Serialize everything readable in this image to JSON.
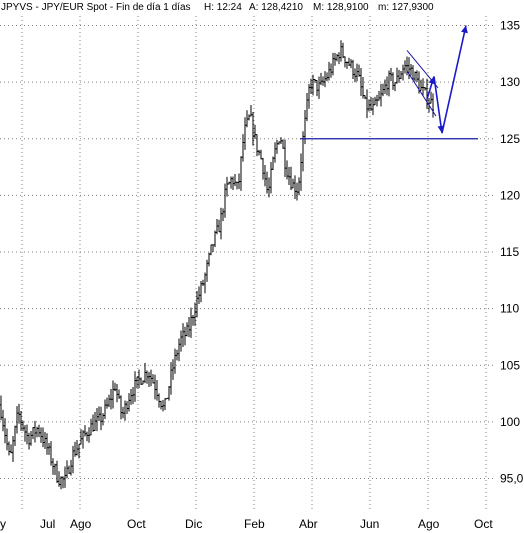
{
  "chart_data": {
    "type": "ohlc",
    "title": "JPYVS - JPY/EUR Spot - Fin de día 1 días",
    "header": {
      "title": "JPYVS - JPY/EUR Spot - Fin de día 1 días",
      "high": "H: 12:24",
      "ask": "A: 128,4210",
      "max": "M: 128,9100",
      "min": "m: 127,9300"
    },
    "x_tick_labels": [
      "y",
      "Jul",
      "Ago",
      "Oct",
      "Dic",
      "Feb",
      "Abr",
      "Jun",
      "Ago",
      "Oct"
    ],
    "y_tick_labels": [
      "95,0",
      "100",
      "105",
      "110",
      "115",
      "120",
      "125",
      "130",
      "135"
    ],
    "y_ticks": [
      95,
      100,
      105,
      110,
      115,
      120,
      125,
      130,
      135
    ],
    "ylim": [
      92.5,
      136.5
    ],
    "grid": true,
    "support_level": 125,
    "anchors": [
      [
        0,
        101.5
      ],
      [
        10,
        96.5
      ],
      [
        18,
        100.8
      ],
      [
        28,
        98.5
      ],
      [
        38,
        99.5
      ],
      [
        48,
        97.5
      ],
      [
        58,
        95.0
      ],
      [
        65,
        94.8
      ],
      [
        72,
        97.0
      ],
      [
        82,
        98.5
      ],
      [
        90,
        99.5
      ],
      [
        100,
        100.2
      ],
      [
        108,
        101.5
      ],
      [
        115,
        103.2
      ],
      [
        122,
        100.5
      ],
      [
        130,
        102.5
      ],
      [
        140,
        103.8
      ],
      [
        148,
        104.5
      ],
      [
        156,
        103.0
      ],
      [
        164,
        101.0
      ],
      [
        172,
        104.5
      ],
      [
        180,
        107.2
      ],
      [
        188,
        108.0
      ],
      [
        196,
        110.5
      ],
      [
        204,
        112.5
      ],
      [
        212,
        115.5
      ],
      [
        220,
        117.5
      ],
      [
        226,
        120.5
      ],
      [
        232,
        121.5
      ],
      [
        238,
        120.5
      ],
      [
        244,
        125.5
      ],
      [
        250,
        127.0
      ],
      [
        256,
        124.5
      ],
      [
        262,
        123.0
      ],
      [
        268,
        120.0
      ],
      [
        274,
        123.5
      ],
      [
        280,
        125.5
      ],
      [
        286,
        122.5
      ],
      [
        292,
        121.0
      ],
      [
        298,
        120.5
      ],
      [
        303,
        125.0
      ],
      [
        310,
        130.0
      ],
      [
        320,
        129.5
      ],
      [
        330,
        131.0
      ],
      [
        340,
        132.8
      ],
      [
        350,
        131.5
      ],
      [
        358,
        130.5
      ],
      [
        365,
        128.0
      ],
      [
        372,
        127.5
      ],
      [
        380,
        128.5
      ],
      [
        388,
        130.2
      ],
      [
        396,
        130.0
      ],
      [
        404,
        131.5
      ],
      [
        412,
        131.0
      ],
      [
        420,
        129.5
      ],
      [
        428,
        128.5
      ],
      [
        434,
        127.9
      ]
    ],
    "projection": {
      "channel_upper": [
        [
          407,
          132.8
        ],
        [
          438,
          129.5
        ]
      ],
      "channel_lower": [
        [
          407,
          131.0
        ],
        [
          436,
          127.0
        ]
      ],
      "path": [
        [
          427,
          128.5
        ],
        [
          434,
          130.5
        ],
        [
          442,
          125.5
        ],
        [
          466,
          135.0
        ]
      ]
    }
  }
}
